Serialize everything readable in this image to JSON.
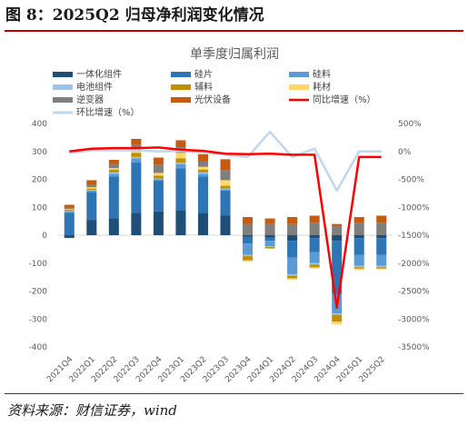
{
  "figure": {
    "title": "图 8：2025Q2 归母净利润变化情况",
    "source": "资料来源：财信证券，wind"
  },
  "chart_data": {
    "type": "bar",
    "title": "单季度归属利润",
    "categories": [
      "2021Q4",
      "2022Q1",
      "2022Q2",
      "2022Q3",
      "2022Q4",
      "2023Q1",
      "2023Q2",
      "2023Q3",
      "2023Q4",
      "2024Q1",
      "2024Q2",
      "2024Q3",
      "2024Q4",
      "2025Q1",
      "2025Q2"
    ],
    "ylim": [
      -400,
      400
    ],
    "y_ticks": [
      -400,
      -300,
      -200,
      -100,
      0,
      100,
      200,
      300,
      400
    ],
    "y2lim": [
      -3500,
      500
    ],
    "y2_ticks": [
      "500%",
      "0%",
      "-500%",
      "-1000%",
      "-1500%",
      "-2000%",
      "-2500%",
      "-3000%",
      "-3500%"
    ],
    "y2_tick_values": [
      500,
      0,
      -500,
      -1000,
      -1500,
      -2000,
      -2500,
      -3000,
      -3500
    ],
    "grid": false,
    "legend_position": "top",
    "stacked_series": [
      {
        "name": "一体化组件",
        "color": "#1f4e79",
        "values": [
          -10,
          55,
          60,
          80,
          85,
          90,
          80,
          70,
          -5,
          -8,
          -20,
          -10,
          -20,
          -10,
          -10
        ]
      },
      {
        "name": "硅片",
        "color": "#2e75b6",
        "values": [
          80,
          100,
          150,
          180,
          110,
          150,
          130,
          90,
          -25,
          -12,
          -60,
          -50,
          -190,
          -60,
          -60
        ]
      },
      {
        "name": "硅料",
        "color": "#5b9bd5",
        "values": [
          5,
          5,
          10,
          15,
          5,
          15,
          10,
          5,
          -40,
          -20,
          -60,
          -40,
          -70,
          -40,
          -40
        ]
      },
      {
        "name": "电池组件",
        "color": "#9dc3e6",
        "values": [
          2,
          2,
          5,
          5,
          3,
          5,
          5,
          2,
          -5,
          -2,
          -5,
          -5,
          -5,
          -5,
          -5
        ]
      },
      {
        "name": "辅料",
        "color": "#bf9000",
        "values": [
          5,
          5,
          10,
          15,
          10,
          15,
          10,
          10,
          -15,
          -5,
          -10,
          -10,
          -25,
          -5,
          -5
        ]
      },
      {
        "name": "耗材",
        "color": "#ffd966",
        "values": [
          2,
          5,
          5,
          10,
          10,
          20,
          10,
          20,
          -5,
          -2,
          -5,
          -5,
          -10,
          -5,
          -2
        ]
      },
      {
        "name": "逆变器",
        "color": "#7f7f7f",
        "values": [
          5,
          10,
          15,
          20,
          30,
          20,
          20,
          35,
          40,
          40,
          40,
          45,
          30,
          45,
          45
        ]
      },
      {
        "name": "光伏设备",
        "color": "#c55a11",
        "values": [
          10,
          15,
          15,
          20,
          25,
          25,
          25,
          40,
          25,
          20,
          25,
          25,
          10,
          20,
          25
        ]
      }
    ],
    "line_series": [
      {
        "name": "同比增速（%）",
        "color": "#ff0000",
        "values": [
          0,
          50,
          60,
          60,
          70,
          30,
          10,
          -40,
          -50,
          -40,
          -60,
          -60,
          -2800,
          -100,
          -100
        ]
      },
      {
        "name": "环比增速（%）",
        "color": "#bdd7ee",
        "values": [
          -30,
          20,
          20,
          20,
          0,
          10,
          -20,
          -60,
          -100,
          350,
          -100,
          50,
          -700,
          0,
          0
        ]
      }
    ]
  }
}
